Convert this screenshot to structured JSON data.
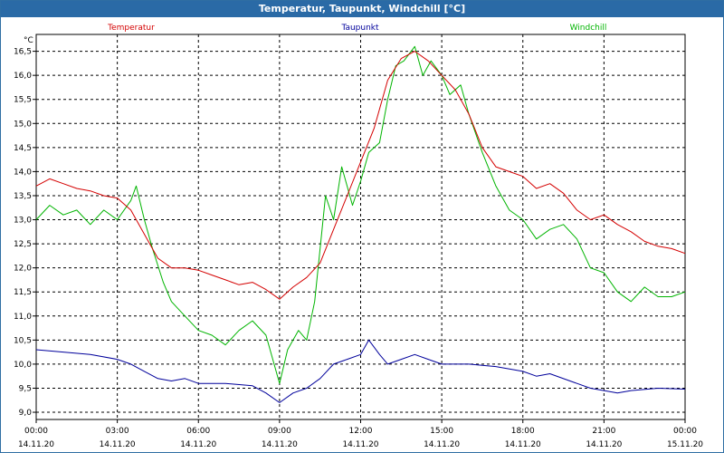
{
  "window": {
    "title": "Temperatur, Taupunkt, Windchill [°C]"
  },
  "chart_data": {
    "type": "line",
    "title": "Temperatur, Taupunkt, Windchill [°C]",
    "ylabel": "°C",
    "xlim": [
      0,
      24
    ],
    "ylim": [
      8.85,
      16.85
    ],
    "grid": true,
    "legend_position": "top",
    "x_ticks": [
      {
        "x": 0,
        "time": "00:00",
        "date": "14.11.20"
      },
      {
        "x": 3,
        "time": "03:00",
        "date": "14.11.20"
      },
      {
        "x": 6,
        "time": "06:00",
        "date": "14.11.20"
      },
      {
        "x": 9,
        "time": "09:00",
        "date": "14.11.20"
      },
      {
        "x": 12,
        "time": "12:00",
        "date": "14.11.20"
      },
      {
        "x": 15,
        "time": "15:00",
        "date": "14.11.20"
      },
      {
        "x": 18,
        "time": "18:00",
        "date": "14.11.20"
      },
      {
        "x": 21,
        "time": "21:00",
        "date": "14.11.20"
      },
      {
        "x": 24,
        "time": "00:00",
        "date": "15.11.20"
      }
    ],
    "y_ticks": [
      {
        "v": 9.0,
        "label": "9,0"
      },
      {
        "v": 9.5,
        "label": "9,5"
      },
      {
        "v": 10.0,
        "label": "10,0"
      },
      {
        "v": 10.5,
        "label": "10,5"
      },
      {
        "v": 11.0,
        "label": "11,0"
      },
      {
        "v": 11.5,
        "label": "11,5"
      },
      {
        "v": 12.0,
        "label": "12,0"
      },
      {
        "v": 12.5,
        "label": "12,5"
      },
      {
        "v": 13.0,
        "label": "13,0"
      },
      {
        "v": 13.5,
        "label": "13,5"
      },
      {
        "v": 14.0,
        "label": "14,0"
      },
      {
        "v": 14.5,
        "label": "14,5"
      },
      {
        "v": 15.0,
        "label": "15,0"
      },
      {
        "v": 15.5,
        "label": "15,5"
      },
      {
        "v": 16.0,
        "label": "16,0"
      },
      {
        "v": 16.5,
        "label": "16,5"
      }
    ],
    "series": [
      {
        "name": "Temperatur",
        "color": "#d40000",
        "points": [
          [
            0,
            13.7
          ],
          [
            0.5,
            13.85
          ],
          [
            1,
            13.75
          ],
          [
            1.5,
            13.65
          ],
          [
            2,
            13.6
          ],
          [
            2.5,
            13.5
          ],
          [
            3,
            13.45
          ],
          [
            3.5,
            13.2
          ],
          [
            4,
            12.7
          ],
          [
            4.5,
            12.2
          ],
          [
            5,
            12.0
          ],
          [
            5.5,
            12.0
          ],
          [
            6,
            11.95
          ],
          [
            6.5,
            11.85
          ],
          [
            7,
            11.75
          ],
          [
            7.5,
            11.65
          ],
          [
            8,
            11.7
          ],
          [
            8.5,
            11.55
          ],
          [
            9,
            11.35
          ],
          [
            9.5,
            11.6
          ],
          [
            10,
            11.8
          ],
          [
            10.5,
            12.1
          ],
          [
            11,
            12.8
          ],
          [
            11.5,
            13.5
          ],
          [
            12,
            14.2
          ],
          [
            12.5,
            14.9
          ],
          [
            13,
            15.9
          ],
          [
            13.5,
            16.35
          ],
          [
            14,
            16.5
          ],
          [
            14.5,
            16.3
          ],
          [
            15,
            16.0
          ],
          [
            15.5,
            15.7
          ],
          [
            16,
            15.2
          ],
          [
            16.5,
            14.5
          ],
          [
            17,
            14.1
          ],
          [
            17.5,
            14.0
          ],
          [
            18,
            13.9
          ],
          [
            18.5,
            13.65
          ],
          [
            19,
            13.75
          ],
          [
            19.5,
            13.55
          ],
          [
            20,
            13.2
          ],
          [
            20.5,
            13.0
          ],
          [
            21,
            13.1
          ],
          [
            21.5,
            12.9
          ],
          [
            22,
            12.75
          ],
          [
            22.5,
            12.55
          ],
          [
            23,
            12.45
          ],
          [
            23.5,
            12.4
          ],
          [
            24,
            12.3
          ]
        ]
      },
      {
        "name": "Taupunkt",
        "color": "#00009b",
        "points": [
          [
            0,
            10.3
          ],
          [
            1,
            10.25
          ],
          [
            2,
            10.2
          ],
          [
            3,
            10.1
          ],
          [
            3.5,
            10.0
          ],
          [
            4,
            9.85
          ],
          [
            4.5,
            9.7
          ],
          [
            5,
            9.65
          ],
          [
            5.5,
            9.7
          ],
          [
            6,
            9.6
          ],
          [
            7,
            9.6
          ],
          [
            8,
            9.55
          ],
          [
            8.5,
            9.4
          ],
          [
            9,
            9.2
          ],
          [
            9.5,
            9.4
          ],
          [
            10,
            9.5
          ],
          [
            10.5,
            9.7
          ],
          [
            11,
            10.0
          ],
          [
            11.5,
            10.1
          ],
          [
            12,
            10.2
          ],
          [
            12.3,
            10.5
          ],
          [
            12.7,
            10.2
          ],
          [
            13,
            10.0
          ],
          [
            13.5,
            10.1
          ],
          [
            14,
            10.2
          ],
          [
            14.5,
            10.1
          ],
          [
            15,
            10.0
          ],
          [
            16,
            10.0
          ],
          [
            17,
            9.95
          ],
          [
            18,
            9.85
          ],
          [
            18.5,
            9.75
          ],
          [
            19,
            9.8
          ],
          [
            20,
            9.6
          ],
          [
            20.5,
            9.5
          ],
          [
            21,
            9.45
          ],
          [
            21.5,
            9.4
          ],
          [
            22,
            9.45
          ],
          [
            23,
            9.5
          ],
          [
            24,
            9.48
          ]
        ]
      },
      {
        "name": "Windchill",
        "color": "#00b400",
        "points": [
          [
            0,
            13.0
          ],
          [
            0.5,
            13.3
          ],
          [
            1,
            13.1
          ],
          [
            1.5,
            13.2
          ],
          [
            2,
            12.9
          ],
          [
            2.5,
            13.2
          ],
          [
            3,
            13.0
          ],
          [
            3.5,
            13.4
          ],
          [
            3.7,
            13.7
          ],
          [
            4,
            13.0
          ],
          [
            4.3,
            12.4
          ],
          [
            4.7,
            11.7
          ],
          [
            5,
            11.3
          ],
          [
            5.5,
            11.0
          ],
          [
            6,
            10.7
          ],
          [
            6.5,
            10.6
          ],
          [
            7,
            10.4
          ],
          [
            7.5,
            10.7
          ],
          [
            8,
            10.9
          ],
          [
            8.5,
            10.6
          ],
          [
            9,
            9.6
          ],
          [
            9.3,
            10.3
          ],
          [
            9.7,
            10.7
          ],
          [
            10,
            10.5
          ],
          [
            10.3,
            11.3
          ],
          [
            10.7,
            13.5
          ],
          [
            11,
            13.0
          ],
          [
            11.3,
            14.1
          ],
          [
            11.7,
            13.3
          ],
          [
            12,
            13.8
          ],
          [
            12.3,
            14.4
          ],
          [
            12.7,
            14.6
          ],
          [
            13,
            15.5
          ],
          [
            13.3,
            16.2
          ],
          [
            13.6,
            16.3
          ],
          [
            14,
            16.6
          ],
          [
            14.3,
            16.0
          ],
          [
            14.6,
            16.3
          ],
          [
            15,
            16.0
          ],
          [
            15.3,
            15.6
          ],
          [
            15.7,
            15.8
          ],
          [
            16,
            15.2
          ],
          [
            16.5,
            14.4
          ],
          [
            17,
            13.7
          ],
          [
            17.5,
            13.2
          ],
          [
            18,
            13.0
          ],
          [
            18.5,
            12.6
          ],
          [
            19,
            12.8
          ],
          [
            19.5,
            12.9
          ],
          [
            20,
            12.6
          ],
          [
            20.5,
            12.0
          ],
          [
            21,
            11.9
          ],
          [
            21.5,
            11.5
          ],
          [
            22,
            11.3
          ],
          [
            22.5,
            11.6
          ],
          [
            23,
            11.4
          ],
          [
            23.5,
            11.4
          ],
          [
            24,
            11.5
          ]
        ]
      }
    ]
  }
}
